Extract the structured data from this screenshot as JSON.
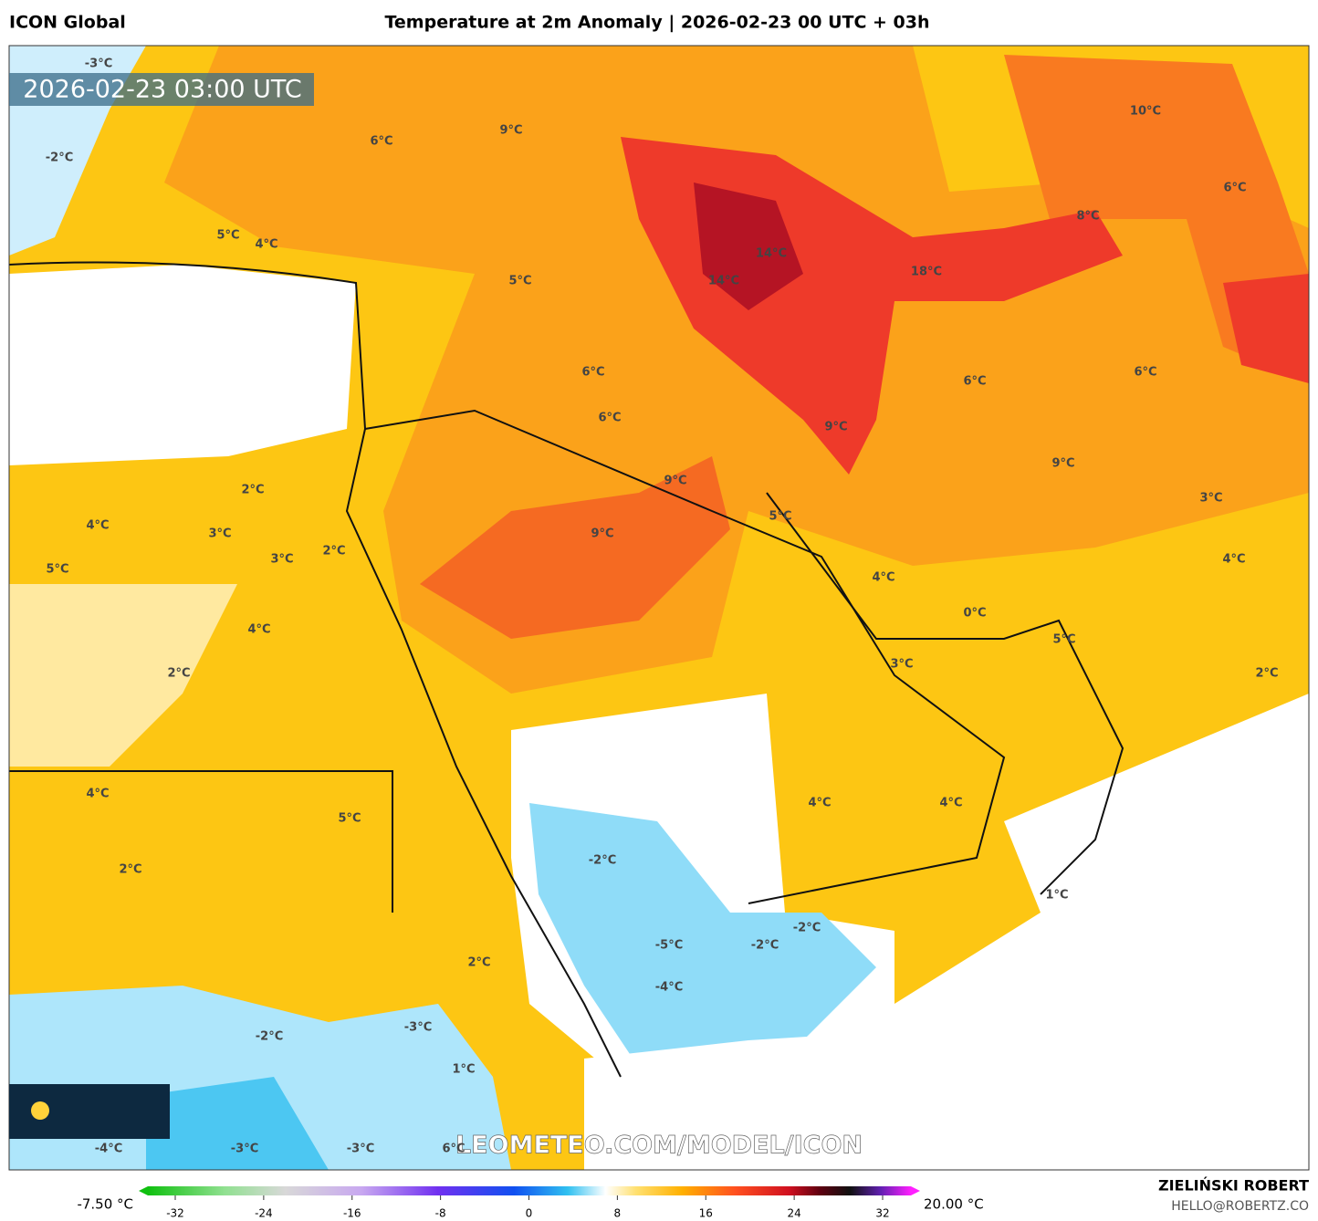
{
  "header": {
    "model": "ICON Global",
    "title": "Temperature at 2m Anomaly | 2026-02-23 00 UTC + 03h"
  },
  "map": {
    "timestamp": "2026-02-23 03:00 UTC",
    "watermark": "LEOMETEO.COM/MODEL/ICON",
    "labels": [
      "-3°C",
      "6°C",
      "9°C",
      "-2°C",
      "5°C",
      "4°C",
      "5°C",
      "14°C",
      "14°C",
      "18°C",
      "10°C",
      "6°C",
      "8°C",
      "6°C",
      "6°C",
      "9°C",
      "9°C",
      "6°C",
      "6°C",
      "9°C",
      "3°C",
      "2°C",
      "4°C",
      "3°C",
      "5°C",
      "3°C",
      "2°C",
      "9°C",
      "5°C",
      "4°C",
      "4°C",
      "0°C",
      "5°C",
      "4°C",
      "2°C",
      "3°C",
      "2°C",
      "4°C",
      "5°C",
      "4°C",
      "4°C",
      "2°C",
      "-2°C",
      "1°C",
      "-5°C",
      "-2°C",
      "-2°C",
      "2°C",
      "-4°C",
      "-3°C",
      "-2°C",
      "1°C",
      "-4°C",
      "-3°C",
      "-3°C",
      "6°C"
    ]
  },
  "legend": {
    "min_label": "-7.50 °C",
    "max_label": "20.00 °C",
    "ticks": [
      -32,
      -24,
      -16,
      -8,
      0,
      8,
      16,
      24,
      32
    ]
  },
  "footer": {
    "author": "ZIELIŃSKI ROBERT",
    "email": "HELLO@ROBERTZ.CO"
  }
}
